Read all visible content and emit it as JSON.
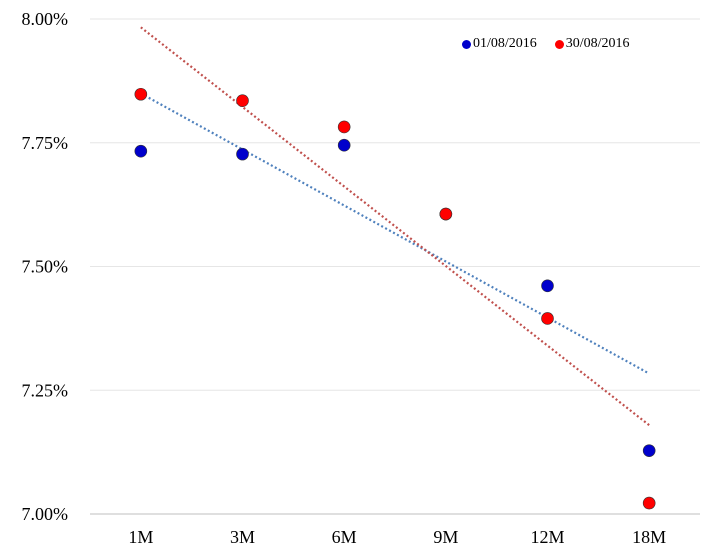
{
  "chart_data": {
    "type": "scatter",
    "title": "",
    "xlabel": "",
    "ylabel": "",
    "categories": [
      "1M",
      "3M",
      "6M",
      "9M",
      "12M",
      "18M"
    ],
    "ylim": [
      7.0,
      8.0
    ],
    "yticks": [
      "7.00%",
      "7.25%",
      "7.50%",
      "7.75%",
      "8.00%"
    ],
    "grid": "horizontal",
    "legend_position": "top-right",
    "trendline": "linear-dotted",
    "series": [
      {
        "name": "01/08/2016",
        "color": "#0000CC",
        "trend_color": "#4F81BD",
        "values": [
          7.733,
          7.727,
          7.745,
          7.606,
          7.461,
          7.128
        ]
      },
      {
        "name": "30/08/2016",
        "color": "#FF0000",
        "trend_color": "#C0504D",
        "values": [
          7.848,
          7.835,
          7.782,
          7.606,
          7.395,
          7.022
        ]
      }
    ]
  }
}
